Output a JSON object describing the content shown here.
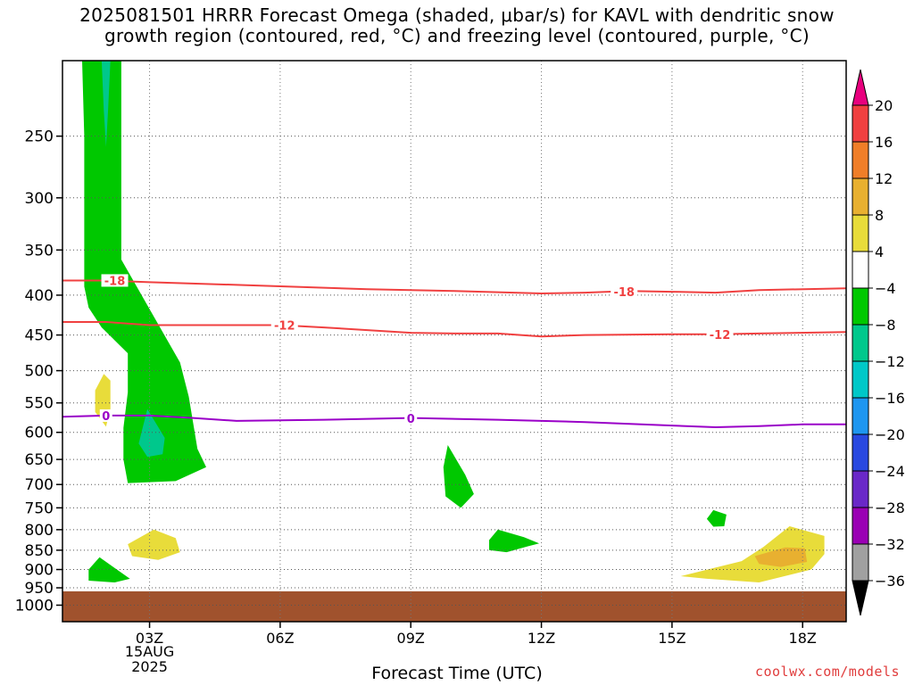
{
  "title_line1": "2025081501 HRRR Forecast Omega (shaded, μbar/s) for KAVL with dendritic snow",
  "title_line2": "growth region (contoured, red, °C) and freezing level (contoured, purple, °C)",
  "credit": "coolwx.com/models",
  "chart_data": {
    "type": "time-height cross-section (filled contour)",
    "xlabel": "Forecast Time (UTC)",
    "x_ticks": [
      "03Z",
      "06Z",
      "09Z",
      "12Z",
      "15Z",
      "18Z"
    ],
    "x_range_hours_utc": [
      1,
      19
    ],
    "date_label": [
      "15AUG",
      "2025"
    ],
    "ylabel": "",
    "y_axis": "pressure (hPa), inverted log scale",
    "y_ticks": [
      250,
      300,
      350,
      400,
      450,
      500,
      550,
      600,
      650,
      700,
      750,
      800,
      850,
      900,
      950,
      1000
    ],
    "y_range_hpa": [
      200,
      1050
    ],
    "grid": "dotted",
    "colorbar": {
      "labels": [
        "20",
        "16",
        "12",
        "8",
        "4",
        "−4",
        "−8",
        "−12",
        "−16",
        "−20",
        "−24",
        "−28",
        "−32",
        "−36"
      ],
      "colors": [
        "#e8007e",
        "#f04040",
        "#f07e28",
        "#e8b030",
        "#e8dc3a",
        "#ffffff",
        "#00c800",
        "#00c88c",
        "#00c8c8",
        "#1e96f0",
        "#2848e0",
        "#6a28c8",
        "#9a00b4",
        "#a0a0a0",
        "#000000"
      ]
    },
    "ground_below_hpa": 960,
    "ground_color": "#a0522d",
    "contours": [
      {
        "label": "-18",
        "color": "#f04040",
        "points": [
          [
            1.0,
            383
          ],
          [
            2.0,
            383
          ],
          [
            3.0,
            385
          ],
          [
            5.0,
            388
          ],
          [
            8.0,
            393
          ],
          [
            10.0,
            395
          ],
          [
            12.0,
            398
          ],
          [
            13.0,
            397
          ],
          [
            14.0,
            395
          ],
          [
            15.0,
            396
          ],
          [
            16.0,
            397
          ],
          [
            17.0,
            394
          ],
          [
            19.0,
            392
          ]
        ],
        "label_at": [
          [
            2.2,
            383
          ],
          [
            13.9,
            396
          ]
        ]
      },
      {
        "label": "-12",
        "color": "#f04040",
        "points": [
          [
            1.0,
            433
          ],
          [
            2.0,
            433
          ],
          [
            3.0,
            437
          ],
          [
            4.0,
            437
          ],
          [
            6.0,
            437
          ],
          [
            7.0,
            440
          ],
          [
            9.0,
            447
          ],
          [
            10.0,
            448
          ],
          [
            11.0,
            448
          ],
          [
            12.0,
            452
          ],
          [
            13.0,
            450
          ],
          [
            15.0,
            449
          ],
          [
            16.0,
            449
          ],
          [
            17.0,
            448
          ],
          [
            19.0,
            446
          ]
        ],
        "label_at": [
          [
            6.1,
            437
          ],
          [
            16.1,
            449
          ]
        ]
      },
      {
        "label": "0",
        "color": "#9a00c8",
        "points": [
          [
            1.0,
            573
          ],
          [
            2.0,
            571
          ],
          [
            3.0,
            571
          ],
          [
            4.0,
            575
          ],
          [
            5.0,
            580
          ],
          [
            7.0,
            578
          ],
          [
            9.0,
            575
          ],
          [
            11.0,
            578
          ],
          [
            13.0,
            582
          ],
          [
            15.0,
            588
          ],
          [
            16.0,
            591
          ],
          [
            17.0,
            589
          ],
          [
            18.0,
            586
          ],
          [
            19.0,
            586
          ]
        ],
        "label_at": [
          [
            2.0,
            571
          ],
          [
            9.0,
            576
          ]
        ]
      }
    ],
    "shaded_regions": [
      {
        "value_range": "-8 to -4",
        "color": "#00c800",
        "points": [
          [
            1.45,
            200
          ],
          [
            2.35,
            200
          ],
          [
            2.35,
            360
          ],
          [
            3.7,
            488
          ],
          [
            3.9,
            540
          ],
          [
            4.1,
            630
          ],
          [
            4.3,
            665
          ],
          [
            3.6,
            693
          ],
          [
            2.5,
            697
          ],
          [
            2.4,
            650
          ],
          [
            2.4,
            592
          ],
          [
            2.5,
            533
          ],
          [
            2.5,
            475
          ],
          [
            1.9,
            440
          ],
          [
            1.6,
            415
          ],
          [
            1.5,
            390
          ],
          [
            1.5,
            250
          ]
        ]
      },
      {
        "value_range": "-12 to -8",
        "color": "#00c88c",
        "points": [
          [
            1.9,
            200
          ],
          [
            2.1,
            200
          ],
          [
            2.05,
            230
          ],
          [
            2.0,
            258
          ],
          [
            1.95,
            232
          ]
        ]
      },
      {
        "value_range": "-12 to -8",
        "color": "#00c88c",
        "points": [
          [
            2.95,
            560
          ],
          [
            3.35,
            610
          ],
          [
            3.3,
            640
          ],
          [
            2.95,
            645
          ],
          [
            2.75,
            620
          ]
        ]
      },
      {
        "value_range": "-8 to -4",
        "color": "#00c800",
        "points": [
          [
            9.85,
            623
          ],
          [
            10.25,
            680
          ],
          [
            10.45,
            720
          ],
          [
            10.15,
            750
          ],
          [
            9.8,
            725
          ],
          [
            9.75,
            665
          ]
        ]
      },
      {
        "value_range": "-8 to -4",
        "color": "#00c800",
        "points": [
          [
            11.0,
            800
          ],
          [
            11.6,
            818
          ],
          [
            11.95,
            833
          ],
          [
            11.7,
            840
          ],
          [
            11.2,
            855
          ],
          [
            10.8,
            850
          ],
          [
            10.8,
            825
          ]
        ]
      },
      {
        "value_range": "-8 to -4",
        "color": "#00c800",
        "points": [
          [
            15.95,
            755
          ],
          [
            16.25,
            765
          ],
          [
            16.2,
            792
          ],
          [
            15.95,
            793
          ],
          [
            15.8,
            775
          ]
        ]
      },
      {
        "value_range": "-8 to -4",
        "color": "#00c800",
        "points": [
          [
            1.85,
            868
          ],
          [
            2.55,
            925
          ],
          [
            2.2,
            935
          ],
          [
            1.6,
            930
          ],
          [
            1.6,
            900
          ]
        ]
      },
      {
        "value_range": "4 to 8",
        "color": "#e8dc3a",
        "points": [
          [
            1.95,
            505
          ],
          [
            2.1,
            515
          ],
          [
            2.1,
            560
          ],
          [
            2.0,
            590
          ],
          [
            1.75,
            565
          ],
          [
            1.75,
            530
          ]
        ]
      },
      {
        "value_range": "4 to 8",
        "color": "#e8dc3a",
        "points": [
          [
            3.1,
            800
          ],
          [
            3.6,
            820
          ],
          [
            3.7,
            855
          ],
          [
            3.2,
            875
          ],
          [
            2.6,
            865
          ],
          [
            2.5,
            835
          ]
        ]
      },
      {
        "value_range": "4 to 8",
        "color": "#e8dc3a",
        "points": [
          [
            17.7,
            792
          ],
          [
            18.5,
            815
          ],
          [
            18.5,
            860
          ],
          [
            18.2,
            900
          ],
          [
            17.0,
            935
          ],
          [
            15.8,
            925
          ],
          [
            15.2,
            918
          ],
          [
            16.6,
            878
          ],
          [
            17.1,
            842
          ]
        ]
      },
      {
        "value_range": "8 to 12",
        "color": "#e8b030",
        "points": [
          [
            17.6,
            843
          ],
          [
            18.05,
            845
          ],
          [
            18.1,
            880
          ],
          [
            17.5,
            893
          ],
          [
            17.0,
            885
          ],
          [
            16.9,
            865
          ]
        ]
      }
    ]
  }
}
